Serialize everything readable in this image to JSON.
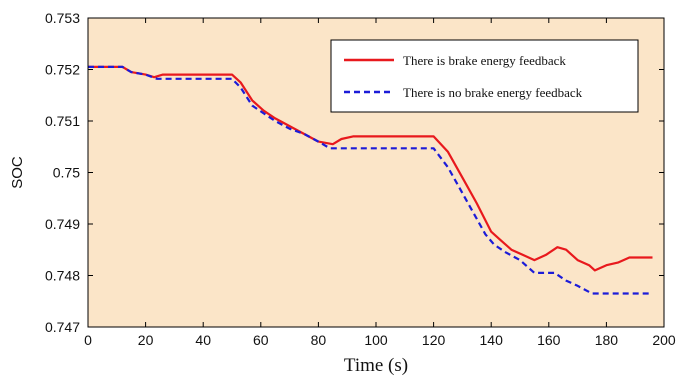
{
  "chart_data": {
    "type": "line",
    "title": "",
    "xlabel": "Time (s)",
    "ylabel": "SOC",
    "xlim": [
      0,
      200
    ],
    "ylim": [
      0.747,
      0.753
    ],
    "xticks": [
      "0",
      "20",
      "40",
      "60",
      "80",
      "100",
      "120",
      "140",
      "160",
      "180",
      "200"
    ],
    "yticks": [
      "0.747",
      "0.748",
      "0.749",
      "0.75",
      "0.751",
      "0.752",
      "0.753"
    ],
    "grid": false,
    "legend_position": "top-right",
    "background_color": "#fbe5c8",
    "series": [
      {
        "name": "There is brake energy feedback",
        "color": "#e8191d",
        "dash": "solid",
        "points": [
          [
            0,
            0.75205
          ],
          [
            12,
            0.75205
          ],
          [
            15,
            0.75195
          ],
          [
            20,
            0.7519
          ],
          [
            23,
            0.75185
          ],
          [
            26,
            0.7519
          ],
          [
            30,
            0.7519
          ],
          [
            50,
            0.7519
          ],
          [
            53,
            0.75175
          ],
          [
            57,
            0.7514
          ],
          [
            61,
            0.7512
          ],
          [
            65,
            0.75105
          ],
          [
            70,
            0.7509
          ],
          [
            75,
            0.75075
          ],
          [
            80,
            0.7506
          ],
          [
            85,
            0.75055
          ],
          [
            88,
            0.75065
          ],
          [
            92,
            0.7507
          ],
          [
            100,
            0.7507
          ],
          [
            110,
            0.7507
          ],
          [
            120,
            0.7507
          ],
          [
            125,
            0.7504
          ],
          [
            130,
            0.7499
          ],
          [
            135,
            0.7494
          ],
          [
            140,
            0.74885
          ],
          [
            143,
            0.7487
          ],
          [
            147,
            0.7485
          ],
          [
            151,
            0.7484
          ],
          [
            155,
            0.7483
          ],
          [
            159,
            0.7484
          ],
          [
            163,
            0.74855
          ],
          [
            166,
            0.7485
          ],
          [
            170,
            0.7483
          ],
          [
            174,
            0.7482
          ],
          [
            176,
            0.7481
          ],
          [
            180,
            0.7482
          ],
          [
            184,
            0.74825
          ],
          [
            188,
            0.74835
          ],
          [
            196,
            0.74835
          ]
        ]
      },
      {
        "name": "There is no brake energy feedback",
        "color": "#1c1cd8",
        "dash": "dashed",
        "points": [
          [
            0,
            0.75205
          ],
          [
            12,
            0.75205
          ],
          [
            15,
            0.75195
          ],
          [
            20,
            0.7519
          ],
          [
            24,
            0.75182
          ],
          [
            30,
            0.75182
          ],
          [
            50,
            0.75182
          ],
          [
            53,
            0.75165
          ],
          [
            57,
            0.7513
          ],
          [
            61,
            0.75115
          ],
          [
            65,
            0.751
          ],
          [
            70,
            0.75085
          ],
          [
            75,
            0.75075
          ],
          [
            80,
            0.7506
          ],
          [
            84,
            0.75047
          ],
          [
            90,
            0.75047
          ],
          [
            100,
            0.75047
          ],
          [
            110,
            0.75047
          ],
          [
            120,
            0.75047
          ],
          [
            125,
            0.7501
          ],
          [
            130,
            0.7496
          ],
          [
            135,
            0.7491
          ],
          [
            138,
            0.7488
          ],
          [
            141,
            0.7486
          ],
          [
            145,
            0.74845
          ],
          [
            150,
            0.7483
          ],
          [
            155,
            0.74805
          ],
          [
            162,
            0.74805
          ],
          [
            166,
            0.7479
          ],
          [
            170,
            0.7478
          ],
          [
            175,
            0.74765
          ],
          [
            180,
            0.74765
          ],
          [
            190,
            0.74765
          ],
          [
            196,
            0.74765
          ]
        ]
      }
    ]
  }
}
